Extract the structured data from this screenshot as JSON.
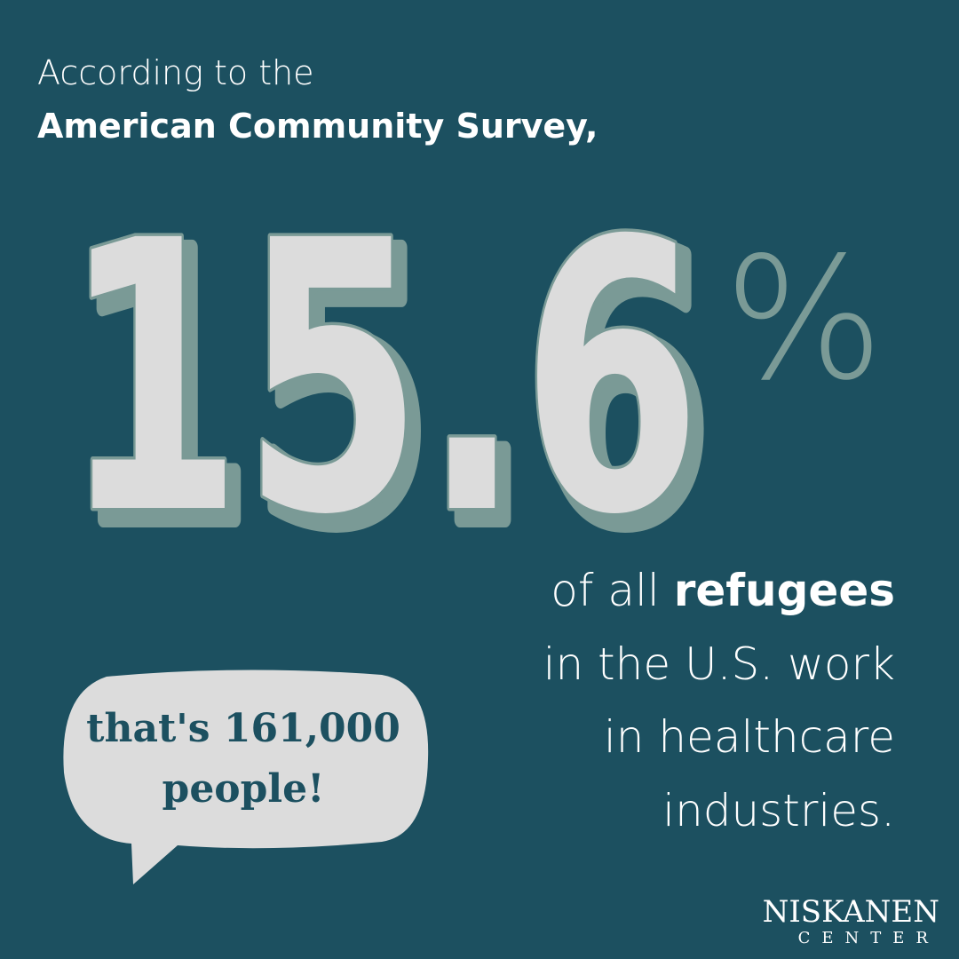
{
  "intro": {
    "line1": "According to the",
    "line2": "American Community Survey,"
  },
  "stat": {
    "number": "15.6",
    "unit": "%"
  },
  "description": {
    "line1_part1": "of all",
    "line1_part2": "refugees",
    "line2": "in the U.S. work",
    "line3": "in healthcare",
    "line4": "industries."
  },
  "bubble": {
    "line1": "that's 161,000",
    "line2": "people!"
  },
  "logo": {
    "name": "NISKANEN",
    "subtitle": "CENTER"
  }
}
